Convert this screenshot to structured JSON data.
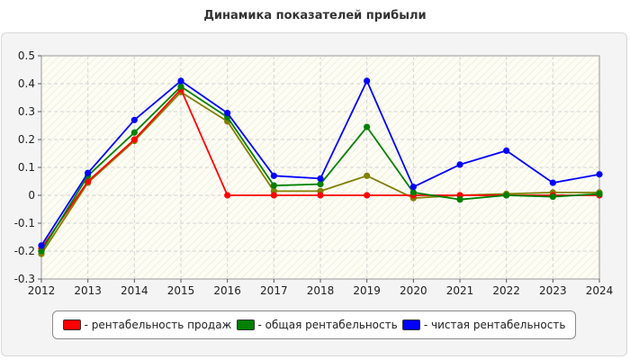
{
  "chart_data": {
    "type": "line",
    "title": "Динамика показателей прибыли",
    "xlabel": "",
    "ylabel": "",
    "categories": [
      "2012",
      "2013",
      "2014",
      "2015",
      "2016",
      "2017",
      "2018",
      "2019",
      "2020",
      "2021",
      "2022",
      "2023",
      "2024"
    ],
    "ylim": [
      -0.3,
      0.5
    ],
    "yticks": [
      "-0.3",
      "-0.2",
      "-0.1",
      "0",
      "0.1",
      "0.2",
      "0.3",
      "0.4",
      "0.5"
    ],
    "grid": true,
    "legend_position": "bottom",
    "series": [
      {
        "name": "- рентабельность продаж",
        "color": "#ff0000",
        "values": [
          -0.19,
          0.05,
          0.2,
          0.38,
          0.0,
          0.0,
          0.0,
          0.0,
          0.0,
          0.0,
          0.0,
          0.0,
          0.0
        ]
      },
      {
        "name": "- общая рентабельность",
        "color": "#008000",
        "values": [
          -0.2,
          0.07,
          0.225,
          0.39,
          0.28,
          0.035,
          0.04,
          0.245,
          0.01,
          -0.015,
          0.0,
          -0.005,
          0.005
        ]
      },
      {
        "name": "- чистая рентабельность",
        "color": "#0000ff",
        "values": [
          -0.18,
          0.08,
          0.27,
          0.41,
          0.295,
          0.07,
          0.06,
          0.41,
          0.03,
          0.11,
          0.16,
          0.045,
          0.075
        ]
      },
      {
        "name": "",
        "color": "#808000",
        "values": [
          -0.21,
          0.045,
          0.195,
          0.37,
          0.265,
          0.015,
          0.015,
          0.07,
          -0.01,
          0.0,
          0.005,
          0.01,
          0.01
        ]
      }
    ]
  }
}
